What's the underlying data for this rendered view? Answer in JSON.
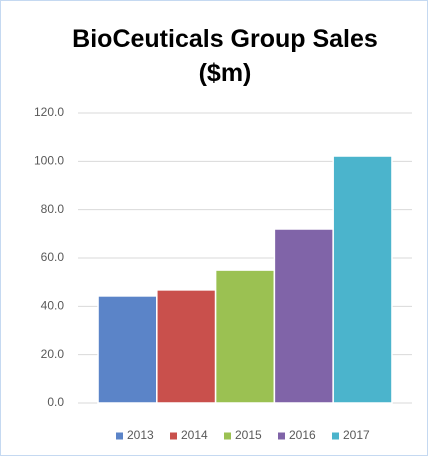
{
  "chart_data": {
    "type": "bar",
    "title": "BioCeuticals Group Sales ($m)",
    "categories": [
      null
    ],
    "series": [
      {
        "name": "2013",
        "color": "#5b84c8",
        "values": [
          44.3
        ]
      },
      {
        "name": "2014",
        "color": "#c9504c",
        "values": [
          46.8
        ]
      },
      {
        "name": "2015",
        "color": "#9bc152",
        "values": [
          55.0
        ]
      },
      {
        "name": "2016",
        "color": "#8064a8",
        "values": [
          72.0
        ]
      },
      {
        "name": "2017",
        "color": "#4bb4cc",
        "values": [
          102.2
        ]
      }
    ],
    "ylim": [
      0,
      120
    ],
    "yticks": [
      {
        "value": 0,
        "label": "0.0"
      },
      {
        "value": 20,
        "label": "20.0"
      },
      {
        "value": 40,
        "label": "40.0"
      },
      {
        "value": 60,
        "label": "60.0"
      },
      {
        "value": 80,
        "label": "80.0"
      },
      {
        "value": 100,
        "label": "100.0"
      },
      {
        "value": 120,
        "label": "120.0"
      }
    ],
    "grid": true,
    "legend": "bottom"
  }
}
